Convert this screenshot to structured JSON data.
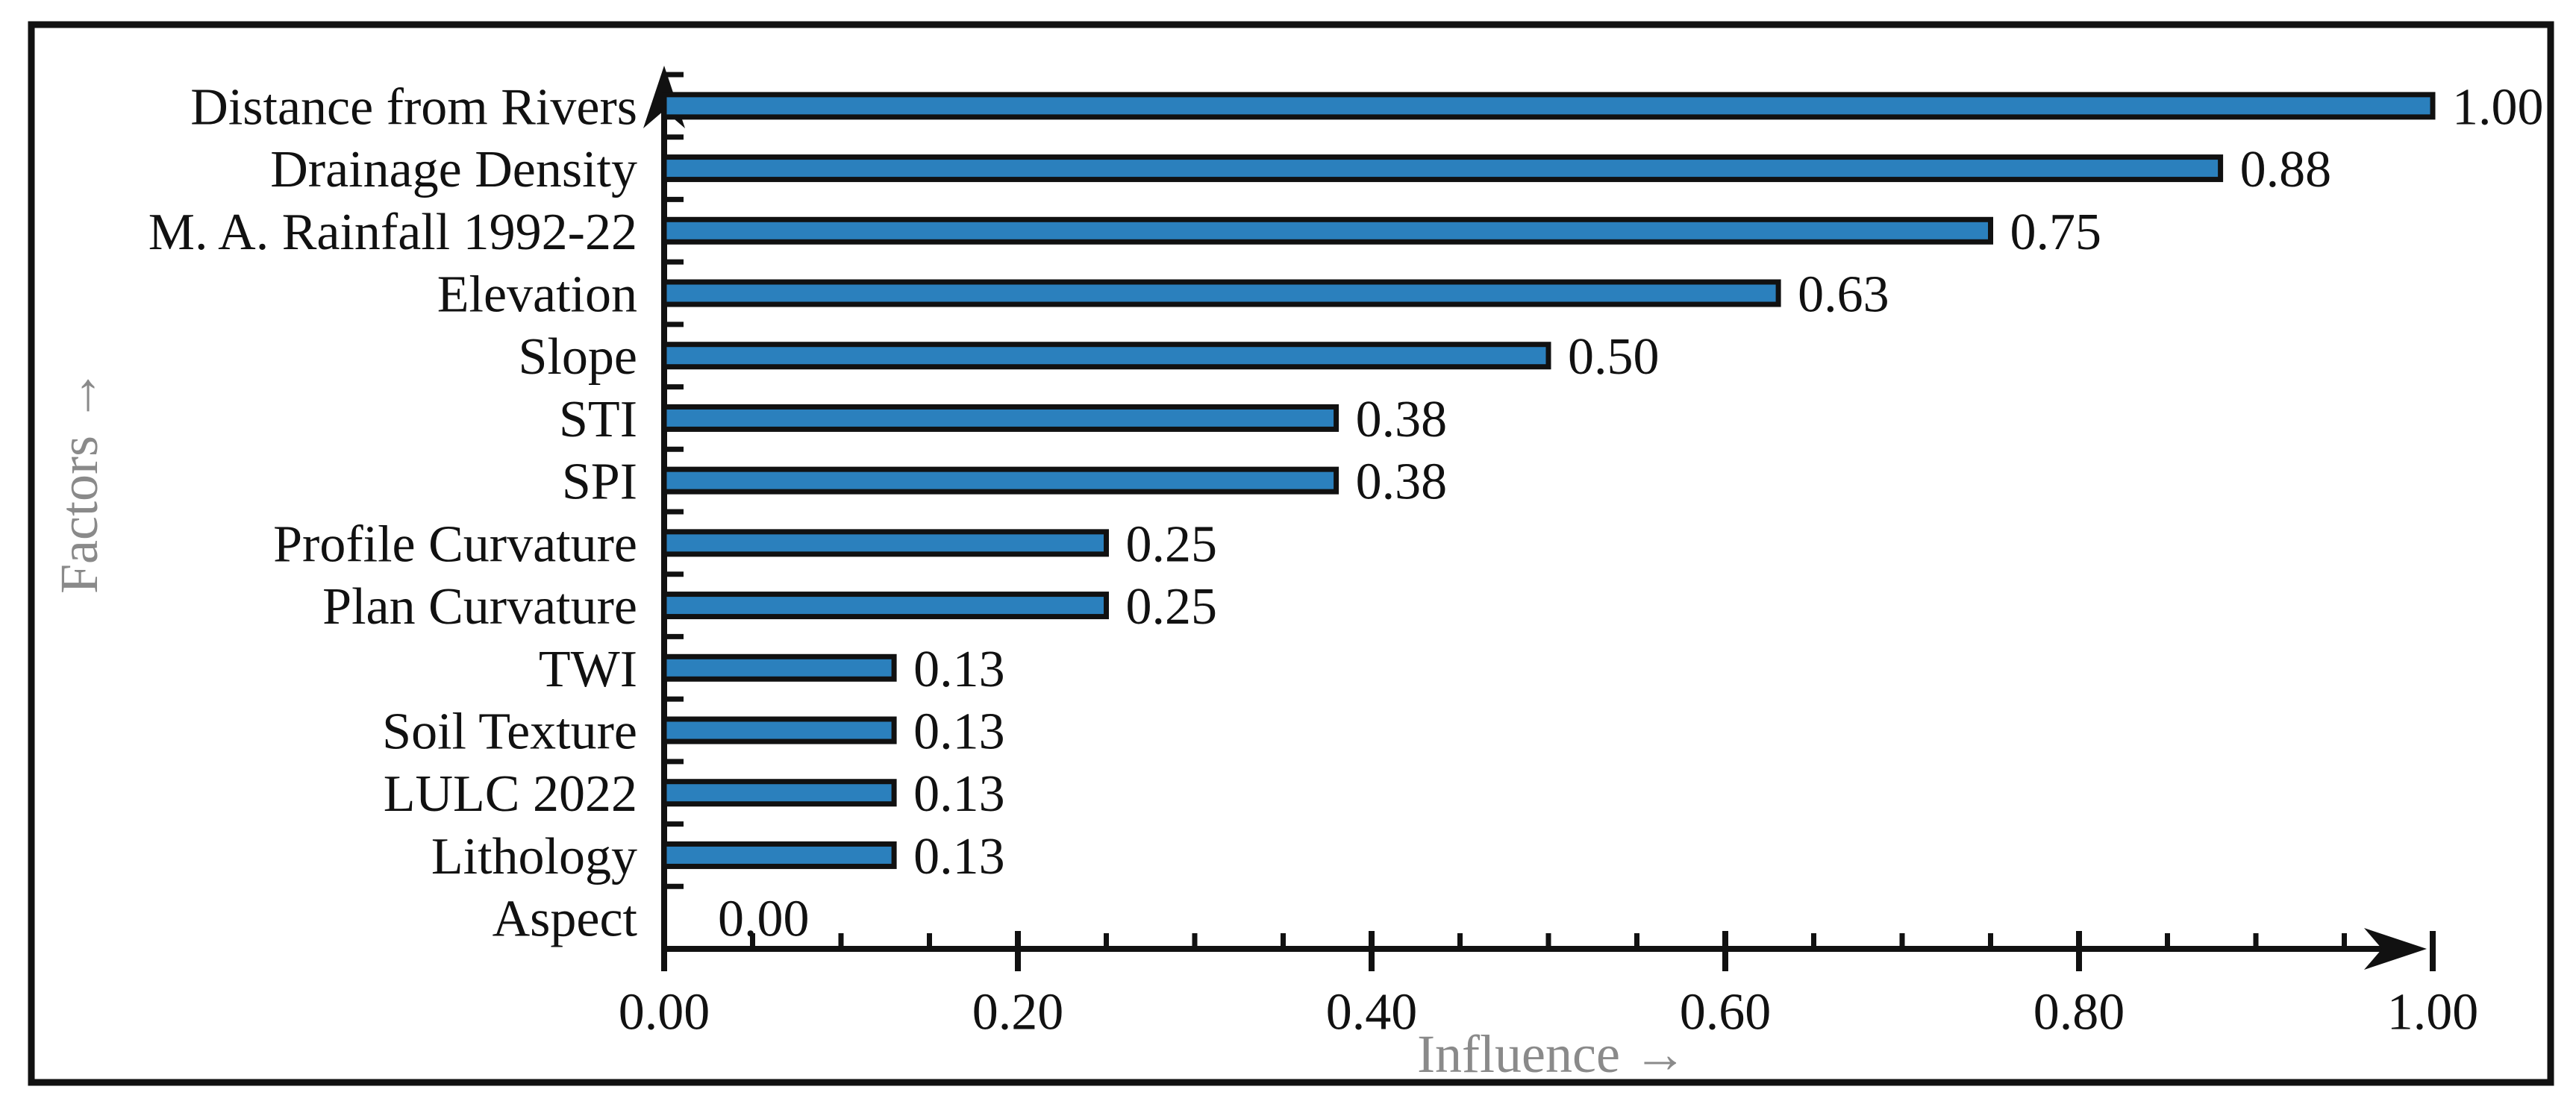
{
  "figure": {
    "background_color": "#ffffff",
    "frame_border_color": "#111111"
  },
  "chart_data": {
    "type": "bar",
    "orientation": "horizontal",
    "title": "",
    "categories": [
      "Distance from Rivers",
      "Drainage Density",
      "M. A. Rainfall 1992-22",
      "Elevation",
      "Slope",
      "STI",
      "SPI",
      "Profile Curvature",
      "Plan Curvature",
      "TWI",
      "Soil Texture",
      "LULC 2022",
      "Lithology",
      "Aspect"
    ],
    "values": [
      1.0,
      0.88,
      0.75,
      0.63,
      0.5,
      0.38,
      0.38,
      0.25,
      0.25,
      0.13,
      0.13,
      0.13,
      0.13,
      0.0
    ],
    "value_labels": [
      "1.00",
      "0.88",
      "0.75",
      "0.63",
      "0.50",
      "0.38",
      "0.38",
      "0.25",
      "0.25",
      "0.13",
      "0.13",
      "0.13",
      "0.13",
      "0.00"
    ],
    "xlabel": "Influence →",
    "ylabel": "Factors →",
    "xlim": [
      0.0,
      1.0
    ],
    "x_tick_labels": [
      "0.00",
      "0.20",
      "0.40",
      "0.60",
      "0.80",
      "1.00"
    ],
    "x_tick_values": [
      0.0,
      0.2,
      0.4,
      0.6,
      0.8,
      1.0
    ],
    "x_minor_tick_step": 0.05,
    "grid": false,
    "legend": null,
    "data_labels_position": "outside-end",
    "bar_fill_color": "#2b80bd",
    "bar_border_color": "#111111",
    "axis_color": "#111111",
    "text_color": "#111111",
    "axis_title_color": "#8a8a8a"
  }
}
